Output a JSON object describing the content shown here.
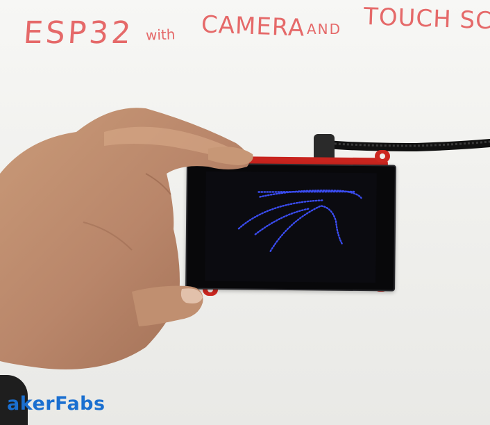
{
  "whiteboard": {
    "title_words": [
      "ESP32",
      "with",
      "CAMERA",
      "AND",
      "TOUCH SCRE"
    ],
    "title_color": "#e56969"
  },
  "logo": {
    "text": "akerFabs",
    "color": "#1a6fd0"
  },
  "device": {
    "board_color": "#c8241e",
    "screen_bar_colors": [
      "#b5e02a",
      "#2a56e8",
      "#22cc22",
      "#e02e20"
    ],
    "drawing_color": "#3a4cf0"
  }
}
